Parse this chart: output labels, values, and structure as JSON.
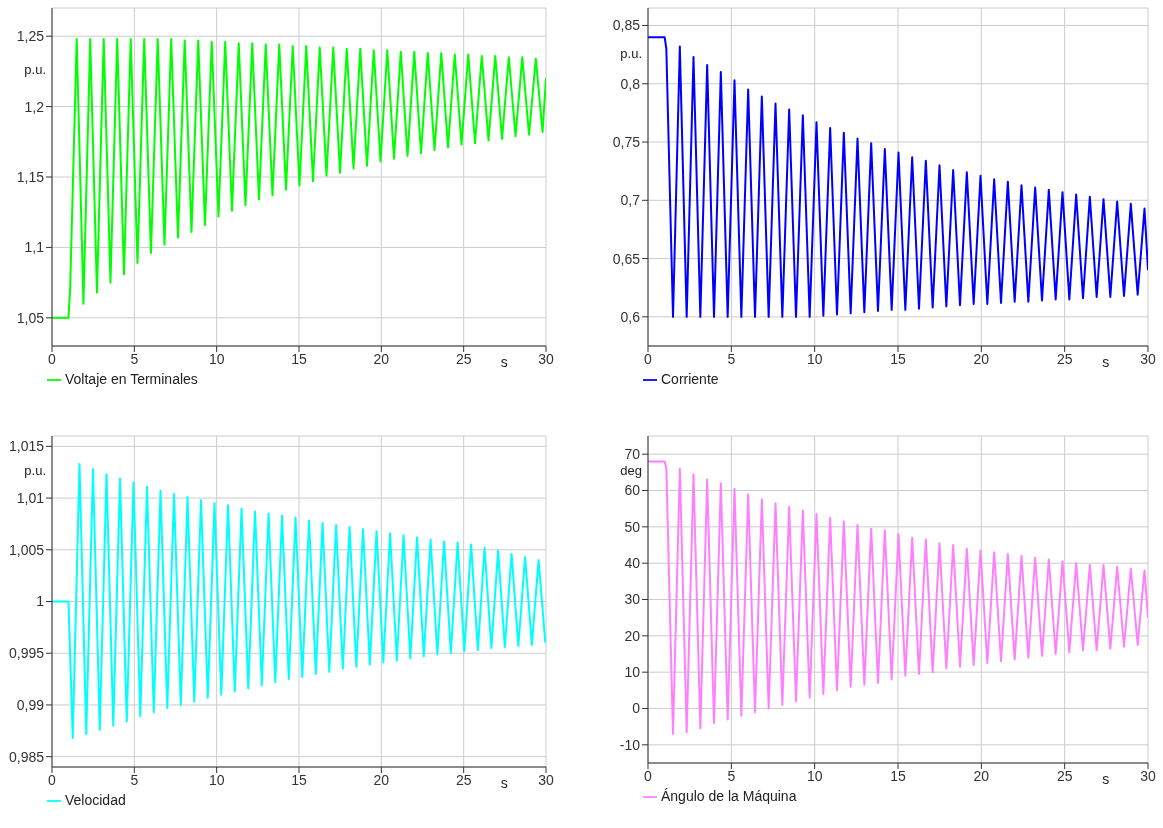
{
  "chart_data": [
    {
      "type": "line",
      "xlabel": "s",
      "ylabel": "p.u.",
      "xlim": [
        0,
        30
      ],
      "xticks": [
        0,
        5,
        10,
        15,
        20,
        25,
        30
      ],
      "ylim": [
        1.03,
        1.27
      ],
      "yticks": [
        {
          "value": 1.05,
          "label": "1,05"
        },
        {
          "value": 1.1,
          "label": "1,1"
        },
        {
          "value": 1.15,
          "label": "1,15"
        },
        {
          "value": 1.2,
          "label": "1,2"
        },
        {
          "value": 1.25,
          "label": "1,25"
        }
      ],
      "grid": true,
      "legend": "bottom",
      "marker": "none",
      "x": [
        0,
        1.0,
        1.1,
        1.5,
        1.91,
        2.32,
        2.73,
        3.14,
        3.55,
        3.96,
        4.37,
        4.78,
        5.19,
        5.6,
        6.01,
        6.42,
        6.83,
        7.24,
        7.65,
        8.06,
        8.47,
        8.88,
        9.29,
        9.7,
        10.11,
        10.52,
        10.93,
        11.34,
        11.75,
        12.16,
        12.57,
        12.98,
        13.39,
        13.8,
        14.21,
        14.62,
        15.03,
        15.44,
        15.85,
        16.26,
        16.67,
        17.08,
        17.49,
        17.9,
        18.31,
        18.72,
        19.13,
        19.54,
        19.95,
        20.36,
        20.77,
        21.18,
        21.59,
        22.0,
        22.41,
        22.82,
        23.23,
        23.64,
        24.05,
        24.46,
        24.87,
        25.28,
        25.69,
        26.1,
        26.51,
        26.92,
        27.33,
        27.74,
        28.15,
        28.56,
        28.97,
        29.38,
        29.79,
        30
      ],
      "series": [
        {
          "name": "Voltaje en Terminales",
          "color": "#00ff00",
          "values": [
            1.05,
            1.05,
            1.07,
            1.248,
            1.06,
            1.248,
            1.068,
            1.248,
            1.075,
            1.248,
            1.081,
            1.248,
            1.089,
            1.248,
            1.096,
            1.248,
            1.102,
            1.248,
            1.107,
            1.247,
            1.111,
            1.247,
            1.116,
            1.246,
            1.122,
            1.246,
            1.126,
            1.245,
            1.13,
            1.245,
            1.134,
            1.244,
            1.137,
            1.244,
            1.141,
            1.243,
            1.144,
            1.243,
            1.147,
            1.242,
            1.151,
            1.242,
            1.153,
            1.241,
            1.156,
            1.241,
            1.158,
            1.24,
            1.161,
            1.24,
            1.163,
            1.239,
            1.165,
            1.239,
            1.167,
            1.238,
            1.169,
            1.238,
            1.171,
            1.237,
            1.173,
            1.237,
            1.174,
            1.236,
            1.176,
            1.236,
            1.177,
            1.235,
            1.179,
            1.235,
            1.18,
            1.234,
            1.182,
            1.22
          ]
        }
      ]
    },
    {
      "type": "line",
      "xlabel": "s",
      "ylabel": "p.u.",
      "xlim": [
        0,
        30
      ],
      "xticks": [
        0,
        5,
        10,
        15,
        20,
        25,
        30
      ],
      "ylim": [
        0.575,
        0.865
      ],
      "yticks": [
        {
          "value": 0.6,
          "label": "0,6"
        },
        {
          "value": 0.65,
          "label": "0,65"
        },
        {
          "value": 0.7,
          "label": "0,7"
        },
        {
          "value": 0.75,
          "label": "0,75"
        },
        {
          "value": 0.8,
          "label": "0,8"
        },
        {
          "value": 0.85,
          "label": "0,85"
        }
      ],
      "grid": true,
      "legend": "bottom",
      "marker": "none",
      "x": [
        0,
        1.0,
        1.1,
        1.5,
        1.91,
        2.32,
        2.73,
        3.14,
        3.55,
        3.96,
        4.37,
        4.78,
        5.19,
        5.6,
        6.01,
        6.42,
        6.83,
        7.24,
        7.65,
        8.06,
        8.47,
        8.88,
        9.29,
        9.7,
        10.11,
        10.52,
        10.93,
        11.34,
        11.75,
        12.16,
        12.57,
        12.98,
        13.39,
        13.8,
        14.21,
        14.62,
        15.03,
        15.44,
        15.85,
        16.26,
        16.67,
        17.08,
        17.49,
        17.9,
        18.31,
        18.72,
        19.13,
        19.54,
        19.95,
        20.36,
        20.77,
        21.18,
        21.59,
        22.0,
        22.41,
        22.82,
        23.23,
        23.64,
        24.05,
        24.46,
        24.87,
        25.28,
        25.69,
        26.1,
        26.51,
        26.92,
        27.33,
        27.74,
        28.15,
        28.56,
        28.97,
        29.38,
        29.79,
        30
      ],
      "series": [
        {
          "name": "Corriente",
          "color": "#0000ff",
          "values": [
            0.84,
            0.84,
            0.83,
            0.6,
            0.832,
            0.6,
            0.823,
            0.6,
            0.816,
            0.6,
            0.81,
            0.6,
            0.803,
            0.6,
            0.795,
            0.6,
            0.789,
            0.6,
            0.783,
            0.6,
            0.778,
            0.6,
            0.773,
            0.6,
            0.767,
            0.601,
            0.762,
            0.602,
            0.758,
            0.603,
            0.753,
            0.604,
            0.749,
            0.605,
            0.744,
            0.606,
            0.741,
            0.606,
            0.737,
            0.607,
            0.734,
            0.608,
            0.73,
            0.609,
            0.726,
            0.61,
            0.724,
            0.611,
            0.721,
            0.611,
            0.718,
            0.612,
            0.716,
            0.613,
            0.713,
            0.613,
            0.711,
            0.614,
            0.709,
            0.615,
            0.707,
            0.615,
            0.705,
            0.616,
            0.703,
            0.617,
            0.701,
            0.617,
            0.699,
            0.618,
            0.697,
            0.619,
            0.693,
            0.64
          ]
        }
      ]
    },
    {
      "type": "line",
      "xlabel": "s",
      "ylabel": "p.u.",
      "xlim": [
        0,
        30
      ],
      "xticks": [
        0,
        5,
        10,
        15,
        20,
        25,
        30
      ],
      "ylim": [
        0.984,
        1.016
      ],
      "yticks": [
        {
          "value": 0.985,
          "label": "0,985"
        },
        {
          "value": 0.99,
          "label": "0,99"
        },
        {
          "value": 0.995,
          "label": "0,995"
        },
        1,
        {
          "value": 1.005,
          "label": "1,005"
        },
        {
          "value": 1.01,
          "label": "1,01"
        },
        {
          "value": 1.015,
          "label": "1,015"
        }
      ],
      "grid": true,
      "legend": "bottom",
      "marker": "none",
      "x": [
        0,
        1.0,
        1.26,
        1.67,
        2.08,
        2.49,
        2.9,
        3.31,
        3.72,
        4.13,
        4.54,
        4.95,
        5.36,
        5.77,
        6.18,
        6.59,
        7.0,
        7.41,
        7.82,
        8.23,
        8.64,
        9.05,
        9.46,
        9.87,
        10.28,
        10.69,
        11.1,
        11.51,
        11.92,
        12.33,
        12.74,
        13.15,
        13.56,
        13.97,
        14.38,
        14.79,
        15.2,
        15.61,
        16.02,
        16.43,
        16.84,
        17.25,
        17.66,
        18.07,
        18.48,
        18.89,
        19.3,
        19.71,
        20.12,
        20.53,
        20.94,
        21.35,
        21.76,
        22.17,
        22.58,
        22.99,
        23.4,
        23.81,
        24.22,
        24.63,
        25.04,
        25.45,
        25.86,
        26.27,
        26.68,
        27.09,
        27.5,
        27.91,
        28.32,
        28.73,
        29.14,
        29.55,
        29.96
      ],
      "series": [
        {
          "name": "Velocidad",
          "color": "#00ffff",
          "values": [
            1,
            1,
            0.9868,
            1.0133,
            0.9872,
            1.0128,
            0.9876,
            1.0123,
            0.988,
            1.0119,
            0.9884,
            1.0115,
            0.9889,
            1.0111,
            0.9893,
            1.0107,
            0.9897,
            1.0104,
            0.99,
            1.0101,
            0.9903,
            1.0098,
            0.9907,
            1.0095,
            0.991,
            1.0093,
            0.9913,
            1.009,
            0.9916,
            1.0087,
            0.9919,
            1.0085,
            0.9922,
            1.0083,
            0.9925,
            1.0081,
            0.9927,
            1.0078,
            0.993,
            1.0076,
            0.9932,
            1.0074,
            0.9935,
            1.0072,
            0.9937,
            1.007,
            0.9939,
            1.0068,
            0.9941,
            1.0066,
            0.9943,
            1.0064,
            0.9945,
            1.0062,
            0.9947,
            1.006,
            0.9949,
            1.0058,
            0.995,
            1.0057,
            0.9952,
            1.0055,
            0.9953,
            1.0052,
            0.9955,
            1.0049,
            0.9956,
            1.0046,
            0.9957,
            1.0043,
            0.9958,
            1.004,
            0.996
          ]
        }
      ]
    },
    {
      "type": "line",
      "xlabel": "s",
      "ylabel": "deg",
      "xlim": [
        0,
        30
      ],
      "xticks": [
        0,
        5,
        10,
        15,
        20,
        25,
        30
      ],
      "ylim": [
        -15,
        75
      ],
      "yticks": [
        -10,
        0,
        10,
        20,
        30,
        40,
        50,
        60,
        70
      ],
      "grid": true,
      "legend": "bottom",
      "marker": "none",
      "x": [
        0,
        1.0,
        1.1,
        1.5,
        1.91,
        2.32,
        2.73,
        3.14,
        3.55,
        3.96,
        4.37,
        4.78,
        5.19,
        5.6,
        6.01,
        6.42,
        6.83,
        7.24,
        7.65,
        8.06,
        8.47,
        8.88,
        9.29,
        9.7,
        10.11,
        10.52,
        10.93,
        11.34,
        11.75,
        12.16,
        12.57,
        12.98,
        13.39,
        13.8,
        14.21,
        14.62,
        15.03,
        15.44,
        15.85,
        16.26,
        16.67,
        17.08,
        17.49,
        17.9,
        18.31,
        18.72,
        19.13,
        19.54,
        19.95,
        20.36,
        20.77,
        21.18,
        21.59,
        22.0,
        22.41,
        22.82,
        23.23,
        23.64,
        24.05,
        24.46,
        24.87,
        25.28,
        25.69,
        26.1,
        26.51,
        26.92,
        27.33,
        27.74,
        28.15,
        28.56,
        28.97,
        29.38,
        29.79,
        30
      ],
      "series": [
        {
          "name": "Ángulo de la Máquina",
          "color": "#ff80ff",
          "values": [
            68,
            68,
            66,
            -7,
            66,
            -6.5,
            64.5,
            -5.5,
            63,
            -4,
            62,
            -3,
            60.5,
            -2,
            59,
            -1,
            57.5,
            0,
            56.5,
            1,
            55.5,
            2,
            54.5,
            3,
            53.5,
            4,
            52.5,
            5,
            51.5,
            6,
            50.5,
            6.5,
            49.5,
            7,
            49,
            8,
            48,
            9,
            47,
            9.5,
            46.5,
            10,
            45.5,
            11,
            45,
            11.5,
            44,
            12,
            43.5,
            12.5,
            43,
            13,
            42.5,
            13.5,
            42,
            14,
            41.5,
            14.5,
            41,
            15,
            40.5,
            15.5,
            40,
            16,
            39.5,
            16,
            39.5,
            16.5,
            39,
            17,
            38.5,
            17.5,
            38,
            25
          ]
        }
      ]
    }
  ]
}
